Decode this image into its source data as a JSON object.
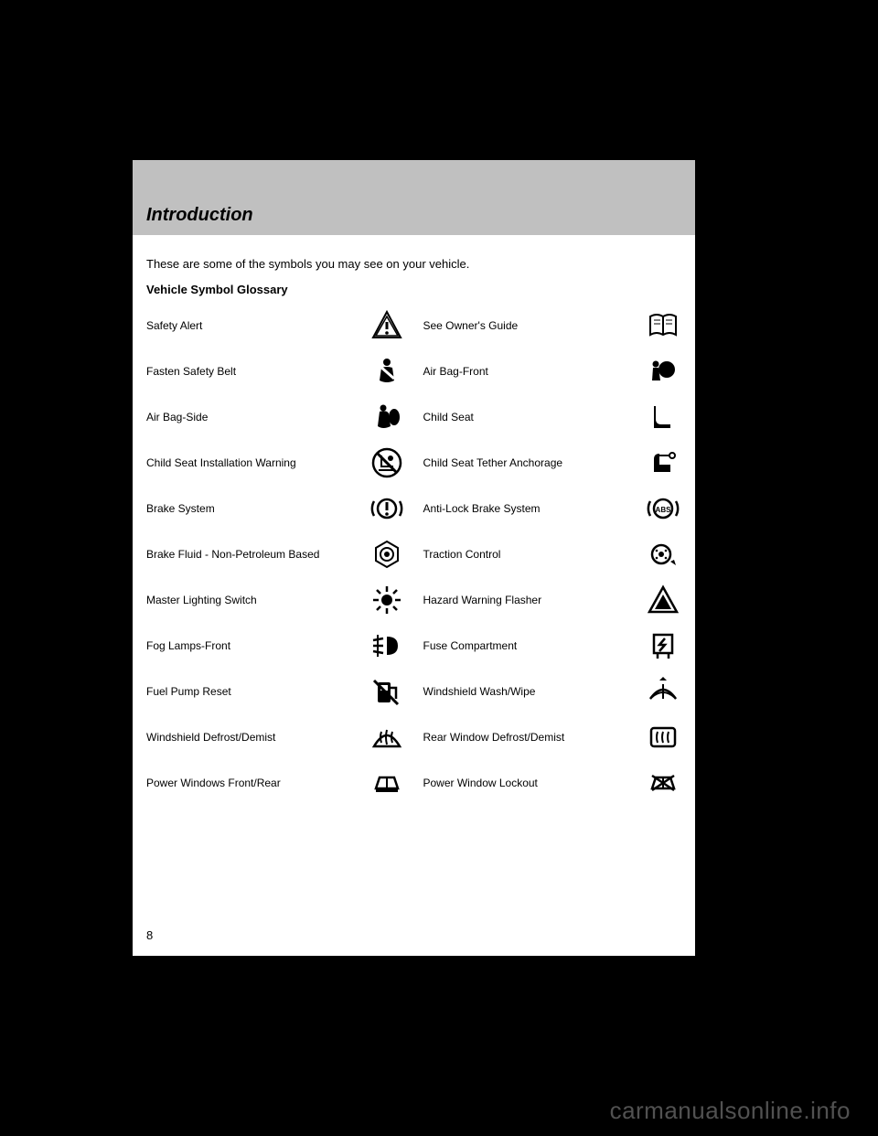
{
  "header": {
    "title": "Introduction"
  },
  "body": {
    "p1": "These are some of the symbols you may see on your vehicle.",
    "p2": "Vehicle Symbol Glossary"
  },
  "glossary": [
    {
      "label": "Safety Alert",
      "icon": "alert-triangle-icon"
    },
    {
      "label": "See Owner's Guide",
      "icon": "book-icon"
    },
    {
      "label": "Fasten Safety Belt",
      "icon": "seatbelt-icon"
    },
    {
      "label": "Air Bag-Front",
      "icon": "airbag-front-icon"
    },
    {
      "label": "Air Bag-Side",
      "icon": "airbag-side-icon"
    },
    {
      "label": "Child Seat",
      "icon": "child-seat-icon"
    },
    {
      "label": "Child Seat Installation Warning",
      "icon": "child-seat-warning-icon"
    },
    {
      "label": "Child Seat Tether Anchorage",
      "icon": "tether-anchor-icon"
    },
    {
      "label": "Brake System",
      "icon": "brake-icon"
    },
    {
      "label": "Anti-Lock Brake System",
      "icon": "abs-icon"
    },
    {
      "label": "Brake Fluid - Non-Petroleum Based",
      "icon": "brake-fluid-icon"
    },
    {
      "label": "Traction Control",
      "icon": "traction-icon"
    },
    {
      "label": "Master Lighting Switch",
      "icon": "light-switch-icon"
    },
    {
      "label": "Hazard Warning Flasher",
      "icon": "hazard-icon"
    },
    {
      "label": "Fog Lamps-Front",
      "icon": "fog-lamp-icon"
    },
    {
      "label": "Fuse Compartment",
      "icon": "fuse-icon"
    },
    {
      "label": "Fuel Pump Reset",
      "icon": "fuel-reset-icon"
    },
    {
      "label": "Windshield Wash/Wipe",
      "icon": "wiper-icon"
    },
    {
      "label": "Windshield Defrost/Demist",
      "icon": "defrost-front-icon"
    },
    {
      "label": "Rear Window Defrost/Demist",
      "icon": "defrost-rear-icon"
    },
    {
      "label": "Power Windows Front/Rear",
      "icon": "power-window-icon"
    },
    {
      "label": "Power Window Lockout",
      "icon": "window-lockout-icon"
    }
  ],
  "page_number": "8",
  "watermark": "carmanualsonline.info",
  "colors": {
    "page_bg": "#ffffff",
    "body_bg": "#000000",
    "header_bg": "#c0c0c0",
    "text": "#000000",
    "watermark": "#888888"
  }
}
